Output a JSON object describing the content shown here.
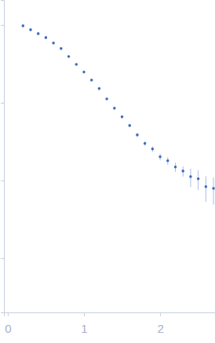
{
  "chart_data": {
    "type": "scatter",
    "log": "y",
    "tick_labels": "x",
    "color": "#3b6cc2",
    "marker": "circle",
    "x": [
      0.2,
      0.3,
      0.4,
      0.5,
      0.6,
      0.7,
      0.8,
      0.9,
      1.0,
      1.1,
      1.2,
      1.3,
      1.4,
      1.5,
      1.6,
      1.7,
      1.8,
      1.9,
      2.0,
      2.1,
      2.2,
      2.3,
      2.4,
      2.5,
      2.6,
      2.7
    ],
    "values": [
      0.977,
      0.87,
      0.774,
      0.689,
      0.586,
      0.498,
      0.394,
      0.312,
      0.248,
      0.196,
      0.152,
      0.112,
      0.085,
      0.0658,
      0.0509,
      0.0385,
      0.0299,
      0.0254,
      0.0201,
      0.0179,
      0.0149,
      0.0132,
      0.0112,
      0.0105,
      0.0083,
      0.0079
    ],
    "errors": [
      0.004,
      0.004,
      0.003,
      0.003,
      0.003,
      0.002,
      0.002,
      0.002,
      0.002,
      0.002,
      0.002,
      0.002,
      0.002,
      0.002,
      0.002,
      0.002,
      0.002,
      0.002,
      0.002,
      0.002,
      0.002,
      0.002,
      0.003,
      0.003,
      0.003,
      0.003
    ],
    "xlim": [
      -0.05,
      2.72
    ],
    "ylim": [
      0.0002,
      2.1
    ],
    "xticks": [
      0,
      1,
      2
    ],
    "yticks": [
      0.001,
      0.01,
      0.1,
      1
    ]
  }
}
